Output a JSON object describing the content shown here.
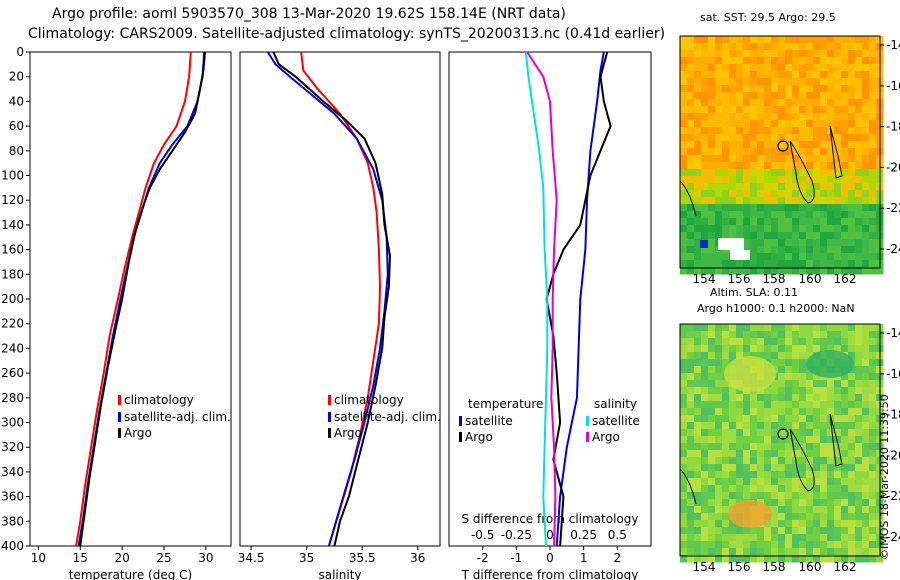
{
  "header": {
    "line1": "Argo profile: aoml 5903570_308 13-Mar-2020 19.62S 158.14E (NRT data)",
    "line2": "Climatology: CARS2009. Satellite-adjusted climatology: synTS_20200313.nc (0.41d earlier)"
  },
  "colors": {
    "climatology": "#ff0000",
    "satellite": "#0000dd",
    "argo": "#000000",
    "sat_salinity": "#00e0e0",
    "argo_salinity": "#dd00dd"
  },
  "chart_data": [
    {
      "type": "line",
      "title": "",
      "xlabel": "temperature (deg C)",
      "ylabel": "pressure",
      "xlim": [
        9,
        33
      ],
      "ylim": [
        400,
        0
      ],
      "x_ticks": [
        10,
        15,
        20,
        25,
        30
      ],
      "y_ticks": [
        0,
        20,
        40,
        60,
        80,
        100,
        120,
        140,
        160,
        180,
        200,
        220,
        240,
        260,
        280,
        300,
        320,
        340,
        360,
        380,
        400
      ],
      "legend": [
        "climatology",
        "satellite-adj. clim.",
        "Argo"
      ],
      "series": [
        {
          "name": "climatology",
          "color": "#ff0000",
          "points": [
            [
              28.2,
              0
            ],
            [
              28.0,
              20
            ],
            [
              27.5,
              40
            ],
            [
              26.5,
              60
            ],
            [
              25.0,
              75
            ],
            [
              23.8,
              90
            ],
            [
              22.8,
              110
            ],
            [
              22.0,
              130
            ],
            [
              21.2,
              150
            ],
            [
              20.3,
              175
            ],
            [
              19.5,
              200
            ],
            [
              18.5,
              230
            ],
            [
              17.8,
              260
            ],
            [
              17.0,
              290
            ],
            [
              16.3,
              320
            ],
            [
              15.6,
              350
            ],
            [
              15.0,
              380
            ],
            [
              14.5,
              400
            ]
          ]
        },
        {
          "name": "satellite-adj. clim.",
          "color": "#0000dd",
          "points": [
            [
              29.8,
              0
            ],
            [
              29.6,
              20
            ],
            [
              29.0,
              40
            ],
            [
              27.8,
              60
            ],
            [
              26.0,
              75
            ],
            [
              24.5,
              90
            ],
            [
              23.2,
              110
            ],
            [
              22.3,
              130
            ],
            [
              21.4,
              150
            ],
            [
              20.6,
              175
            ],
            [
              19.8,
              200
            ],
            [
              18.9,
              230
            ],
            [
              18.1,
              260
            ],
            [
              17.3,
              290
            ],
            [
              16.6,
              320
            ],
            [
              15.9,
              350
            ],
            [
              15.3,
              380
            ],
            [
              14.8,
              400
            ]
          ]
        },
        {
          "name": "Argo",
          "color": "#000000",
          "points": [
            [
              29.9,
              0
            ],
            [
              29.7,
              15
            ],
            [
              29.3,
              30
            ],
            [
              28.7,
              50
            ],
            [
              27.5,
              65
            ],
            [
              26.0,
              80
            ],
            [
              24.5,
              95
            ],
            [
              23.3,
              110
            ],
            [
              22.5,
              125
            ],
            [
              21.6,
              145
            ],
            [
              20.8,
              170
            ],
            [
              20.0,
              200
            ],
            [
              19.2,
              225
            ],
            [
              18.3,
              255
            ],
            [
              17.5,
              285
            ],
            [
              16.8,
              315
            ],
            [
              16.1,
              345
            ],
            [
              15.5,
              375
            ],
            [
              15.0,
              400
            ]
          ]
        }
      ]
    },
    {
      "type": "line",
      "title": "",
      "xlabel": "salinity",
      "ylabel": "",
      "xlim": [
        34.4,
        36.2
      ],
      "ylim": [
        400,
        0
      ],
      "x_ticks": [
        34.5,
        35,
        35.5,
        36
      ],
      "x_tick_labels": [
        "34.5",
        "35",
        "35.5",
        "36"
      ],
      "legend": [
        "climatology",
        "satellite-adj. clim.",
        "Argo"
      ],
      "series": [
        {
          "name": "climatology",
          "color": "#ff0000",
          "points": [
            [
              34.95,
              0
            ],
            [
              34.97,
              15
            ],
            [
              35.1,
              30
            ],
            [
              35.3,
              50
            ],
            [
              35.45,
              70
            ],
            [
              35.55,
              90
            ],
            [
              35.6,
              110
            ],
            [
              35.63,
              130
            ],
            [
              35.65,
              160
            ],
            [
              35.66,
              190
            ],
            [
              35.65,
              220
            ],
            [
              35.6,
              250
            ],
            [
              35.55,
              280
            ],
            [
              35.48,
              310
            ],
            [
              35.4,
              340
            ],
            [
              35.3,
              370
            ],
            [
              35.2,
              400
            ]
          ]
        },
        {
          "name": "satellite-adj. clim.",
          "color": "#0000dd",
          "points": [
            [
              34.65,
              0
            ],
            [
              34.72,
              10
            ],
            [
              34.85,
              20
            ],
            [
              35.05,
              35
            ],
            [
              35.25,
              50
            ],
            [
              35.45,
              70
            ],
            [
              35.6,
              95
            ],
            [
              35.68,
              120
            ],
            [
              35.72,
              150
            ],
            [
              35.73,
              180
            ],
            [
              35.7,
              210
            ],
            [
              35.66,
              240
            ],
            [
              35.6,
              270
            ],
            [
              35.52,
              300
            ],
            [
              35.43,
              330
            ],
            [
              35.33,
              360
            ],
            [
              35.2,
              400
            ]
          ]
        },
        {
          "name": "Argo",
          "color": "#000000",
          "points": [
            [
              34.7,
              0
            ],
            [
              34.75,
              10
            ],
            [
              34.9,
              20
            ],
            [
              35.15,
              40
            ],
            [
              35.35,
              55
            ],
            [
              35.52,
              70
            ],
            [
              35.62,
              90
            ],
            [
              35.68,
              115
            ],
            [
              35.7,
              140
            ],
            [
              35.75,
              165
            ],
            [
              35.74,
              190
            ],
            [
              35.7,
              215
            ],
            [
              35.68,
              240
            ],
            [
              35.62,
              270
            ],
            [
              35.55,
              300
            ],
            [
              35.45,
              335
            ],
            [
              35.38,
              360
            ],
            [
              35.3,
              380
            ],
            [
              35.25,
              400
            ]
          ]
        }
      ]
    },
    {
      "type": "line",
      "title": "",
      "xlabel": "T difference from climatology",
      "ylabel": "",
      "xlim": [
        -3,
        3
      ],
      "ylim": [
        400,
        0
      ],
      "x_ticks": [
        -2,
        -1,
        0,
        1,
        2
      ],
      "top_axis_label": "S difference from climatology",
      "top_ticks": [
        -0.5,
        -0.25,
        0,
        0.25,
        0.5
      ],
      "top_tick_labels": [
        "-0.5",
        "-0.25",
        "0",
        "0.25",
        "0.5"
      ],
      "legend_temperature_title": "temperature",
      "legend_salinity_title": "salinity",
      "legend": [
        "satellite",
        "Argo",
        "satellite",
        "Argo"
      ],
      "series": [
        {
          "name": "T satellite",
          "color": "#0000dd",
          "points": [
            [
              1.6,
              0
            ],
            [
              1.5,
              15
            ],
            [
              1.4,
              40
            ],
            [
              1.2,
              80
            ],
            [
              1.1,
              120
            ],
            [
              1.05,
              160
            ],
            [
              0.9,
              200
            ],
            [
              0.85,
              240
            ],
            [
              0.8,
              280
            ],
            [
              0.5,
              320
            ],
            [
              0.3,
              360
            ],
            [
              0.2,
              400
            ]
          ]
        },
        {
          "name": "T Argo",
          "color": "#000000",
          "points": [
            [
              1.7,
              0
            ],
            [
              1.5,
              20
            ],
            [
              1.6,
              40
            ],
            [
              1.8,
              60
            ],
            [
              1.5,
              80
            ],
            [
              1.2,
              100
            ],
            [
              0.9,
              140
            ],
            [
              0.4,
              160
            ],
            [
              0.1,
              180
            ],
            [
              -0.1,
              200
            ],
            [
              0.1,
              230
            ],
            [
              0.2,
              260
            ],
            [
              0.3,
              300
            ],
            [
              0.1,
              330
            ],
            [
              0.4,
              360
            ],
            [
              0.3,
              400
            ]
          ]
        },
        {
          "name": "S satellite",
          "color": "#00e0e0",
          "points": [
            [
              -0.18,
              0
            ],
            [
              -0.16,
              20
            ],
            [
              -0.12,
              50
            ],
            [
              -0.08,
              80
            ],
            [
              -0.05,
              110
            ],
            [
              -0.04,
              160
            ],
            [
              -0.02,
              200
            ],
            [
              -0.02,
              240
            ],
            [
              -0.03,
              280
            ],
            [
              -0.04,
              320
            ],
            [
              -0.05,
              360
            ],
            [
              -0.03,
              400
            ]
          ]
        },
        {
          "name": "S Argo",
          "color": "#dd00dd",
          "points": [
            [
              -0.17,
              0
            ],
            [
              -0.05,
              20
            ],
            [
              0.0,
              40
            ],
            [
              0.02,
              80
            ],
            [
              0.05,
              120
            ],
            [
              0.03,
              160
            ],
            [
              0.02,
              200
            ],
            [
              0.02,
              240
            ],
            [
              0.01,
              280
            ],
            [
              0.03,
              320
            ],
            [
              0.04,
              360
            ],
            [
              0.03,
              400
            ]
          ]
        }
      ]
    }
  ],
  "maps": {
    "sst": {
      "title": "sat. SST: 29.5 Argo: 29.5",
      "y_ticks": [
        "-14",
        "-16",
        "-18",
        "-20",
        "-22",
        "-24"
      ],
      "x_ticks": [
        "154",
        "156",
        "158",
        "160",
        "162"
      ]
    },
    "sla": {
      "title_line1": "Altim. SLA: 0.11",
      "title_line2": "Argo h1000: 0.1 h2000: NaN",
      "y_ticks": [
        "-14",
        "-16",
        "-18",
        "-20",
        "-22",
        "-24"
      ],
      "x_ticks": [
        "154",
        "156",
        "158",
        "160",
        "162"
      ]
    }
  },
  "credit": "©IMOS 18-Mar-2020 11:39:50"
}
